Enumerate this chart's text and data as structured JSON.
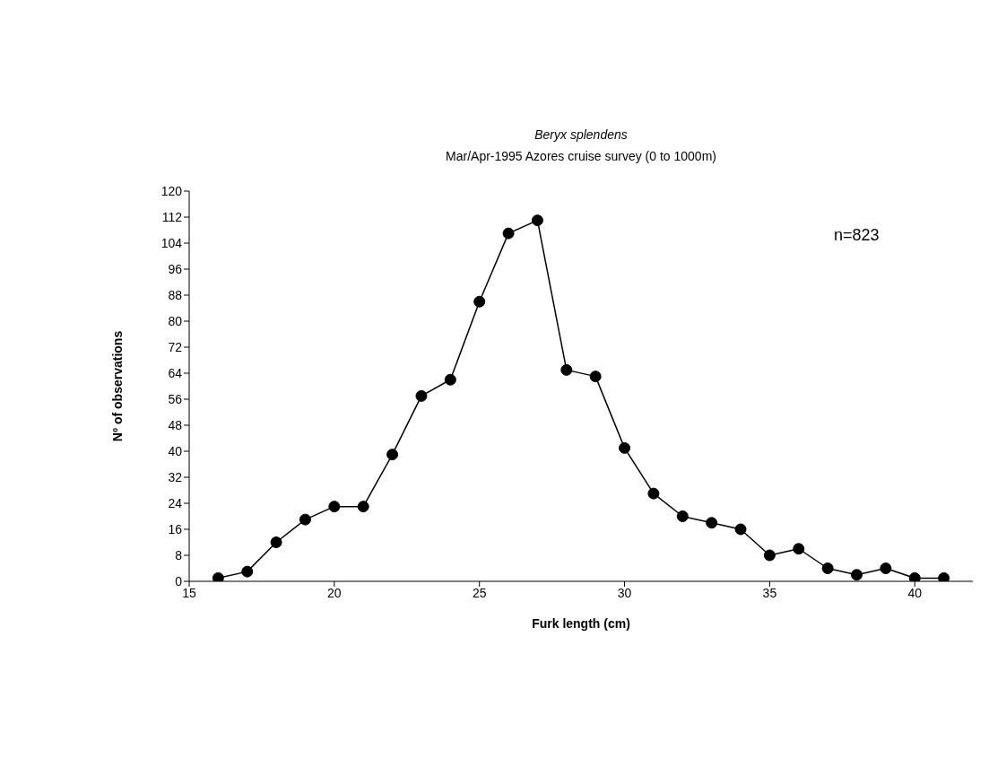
{
  "chart_data": {
    "type": "line",
    "title": "Beryx splendens",
    "subtitle": "Mar/Apr-1995 Azores cruise survey (0 to 1000m)",
    "xlabel": "Furk length (cm)",
    "ylabel": "Nº of observations",
    "x": [
      16,
      17,
      18,
      19,
      20,
      21,
      22,
      23,
      24,
      25,
      26,
      27,
      28,
      29,
      30,
      31,
      32,
      33,
      34,
      35,
      36,
      37,
      38,
      39,
      40,
      41
    ],
    "series": [
      {
        "color": "#000000",
        "values": [
          1,
          3,
          12,
          19,
          23,
          23,
          39,
          57,
          62,
          86,
          107,
          111,
          65,
          63,
          41,
          27,
          20,
          18,
          16,
          8,
          10,
          4,
          2,
          4,
          1,
          1
        ]
      }
    ],
    "xlim": [
      15,
      42
    ],
    "xticks": [
      15,
      20,
      25,
      30,
      35,
      40
    ],
    "ylim": [
      0,
      120
    ],
    "yticks": [
      0,
      8,
      16,
      24,
      32,
      40,
      48,
      56,
      64,
      72,
      80,
      88,
      96,
      104,
      112,
      120
    ],
    "annotations": [
      "n=823"
    ],
    "marker": "circle",
    "grid": false
  }
}
